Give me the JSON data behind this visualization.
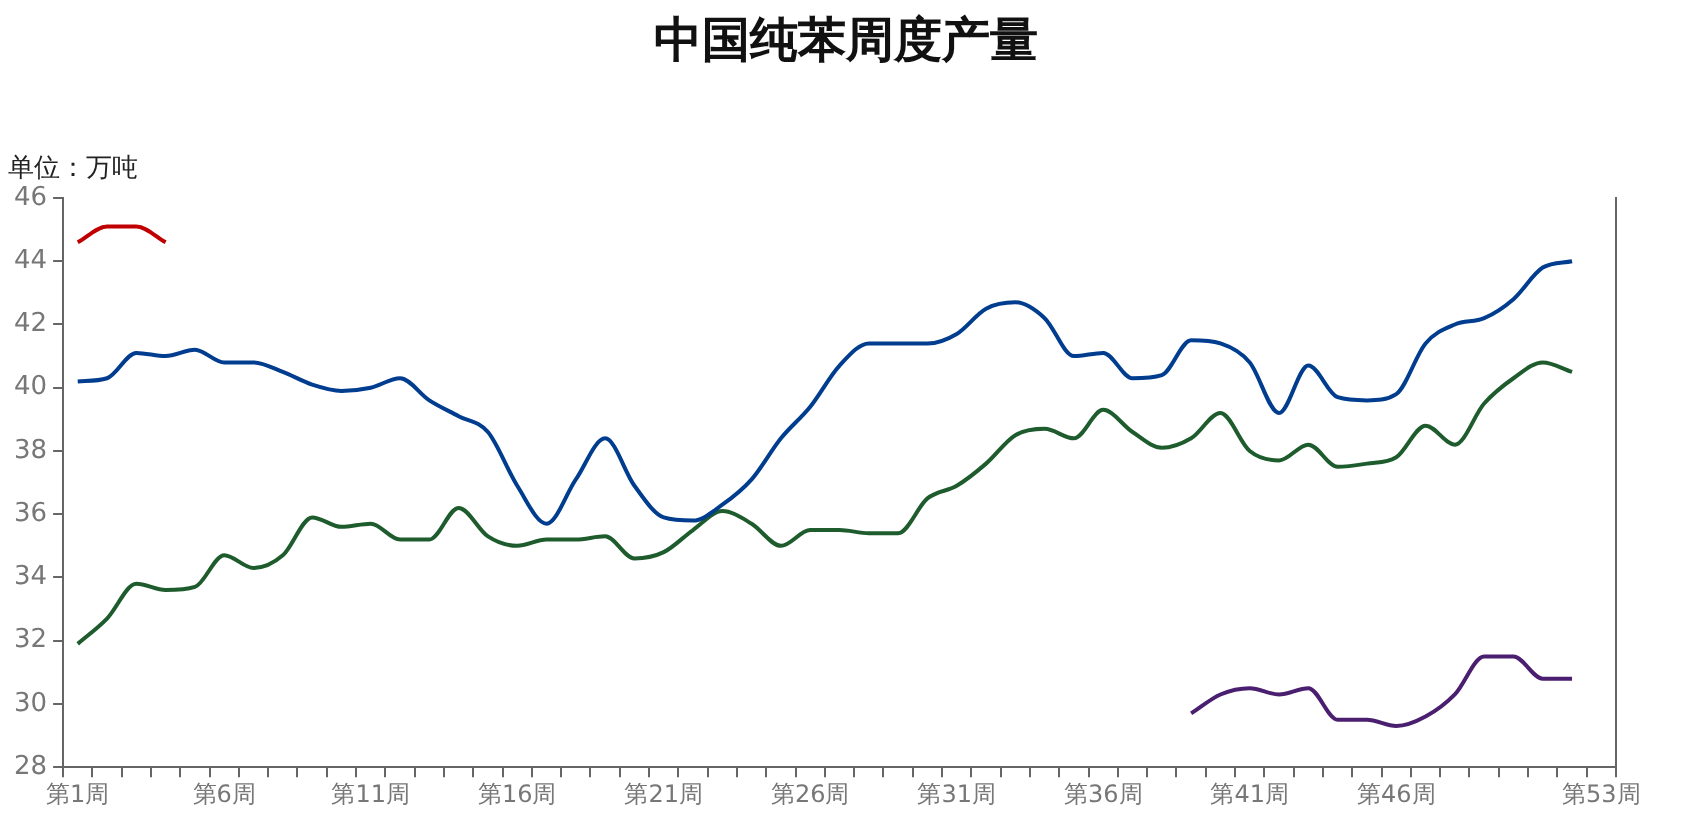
{
  "chart_data": {
    "type": "line",
    "title": "中国纯苯周度产量",
    "annotations": [
      "单位：万吨"
    ],
    "categories": [
      "第1周",
      null,
      null,
      null,
      null,
      "第6周",
      null,
      null,
      null,
      null,
      "第11周",
      null,
      null,
      null,
      null,
      "第16周",
      null,
      null,
      null,
      null,
      "第21周",
      null,
      null,
      null,
      null,
      "第26周",
      null,
      null,
      null,
      null,
      "第31周",
      null,
      null,
      null,
      null,
      "第36周",
      null,
      null,
      null,
      null,
      "第41周",
      null,
      null,
      null,
      null,
      "第46周",
      null,
      null,
      null,
      null,
      null,
      null,
      "第53周"
    ],
    "series": [
      {
        "color": "#c00000",
        "values": [
          44.6,
          45.1,
          45.1,
          44.6,
          null,
          null,
          null,
          null,
          null,
          null,
          null,
          null,
          null,
          null,
          null,
          null,
          null,
          null,
          null,
          null,
          null,
          null,
          null,
          null,
          null,
          null,
          null,
          null,
          null,
          null,
          null,
          null,
          null,
          null,
          null,
          null,
          null,
          null,
          null,
          null,
          null,
          null,
          null,
          null,
          null,
          null,
          null,
          null,
          null,
          null,
          null,
          null,
          null
        ]
      },
      {
        "color": "#003d8f",
        "values": [
          40.2,
          40.3,
          41.1,
          41.0,
          41.2,
          40.8,
          40.8,
          40.5,
          40.1,
          39.9,
          40.0,
          40.3,
          39.6,
          39.1,
          38.6,
          36.9,
          35.7,
          37.1,
          38.4,
          36.9,
          35.9,
          35.8,
          36.3,
          37.1,
          38.4,
          39.4,
          40.7,
          41.4,
          41.4,
          41.4,
          41.7,
          42.5,
          42.7,
          42.2,
          41.0,
          41.1,
          40.3,
          40.4,
          41.5,
          41.4,
          40.8,
          39.2,
          40.7,
          39.7,
          39.6,
          39.8,
          41.4,
          42.0,
          42.2,
          42.8,
          43.8,
          44.0,
          null
        ]
      },
      {
        "color": "#1e5c2e",
        "values": [
          31.9,
          32.7,
          33.8,
          33.6,
          33.7,
          34.7,
          34.3,
          34.7,
          35.9,
          35.6,
          35.7,
          35.2,
          35.2,
          36.2,
          35.3,
          35.0,
          35.2,
          35.2,
          35.3,
          34.6,
          34.8,
          35.5,
          36.1,
          35.7,
          35.0,
          35.5,
          35.5,
          35.4,
          35.4,
          36.5,
          36.9,
          37.6,
          38.5,
          38.7,
          38.4,
          39.3,
          38.6,
          38.1,
          38.4,
          39.2,
          38.0,
          37.7,
          38.2,
          37.5,
          37.6,
          37.8,
          38.8,
          38.2,
          39.5,
          40.3,
          40.8,
          40.5,
          null
        ]
      },
      {
        "color": "#4b1f6f",
        "values": [
          null,
          null,
          null,
          null,
          null,
          null,
          null,
          null,
          null,
          null,
          null,
          null,
          null,
          null,
          null,
          null,
          null,
          null,
          null,
          null,
          null,
          null,
          null,
          null,
          null,
          null,
          null,
          null,
          null,
          null,
          null,
          null,
          null,
          null,
          null,
          null,
          null,
          null,
          29.7,
          30.3,
          30.5,
          30.3,
          30.5,
          29.5,
          29.5,
          29.3,
          29.6,
          30.3,
          31.5,
          31.5,
          30.8,
          30.8,
          null
        ]
      }
    ],
    "ylim": [
      28,
      46
    ],
    "yticks": [
      28,
      30,
      32,
      34,
      36,
      38,
      40,
      42,
      44,
      46
    ],
    "grid": false,
    "legend": false,
    "marker": "none",
    "line_style": "solid"
  }
}
